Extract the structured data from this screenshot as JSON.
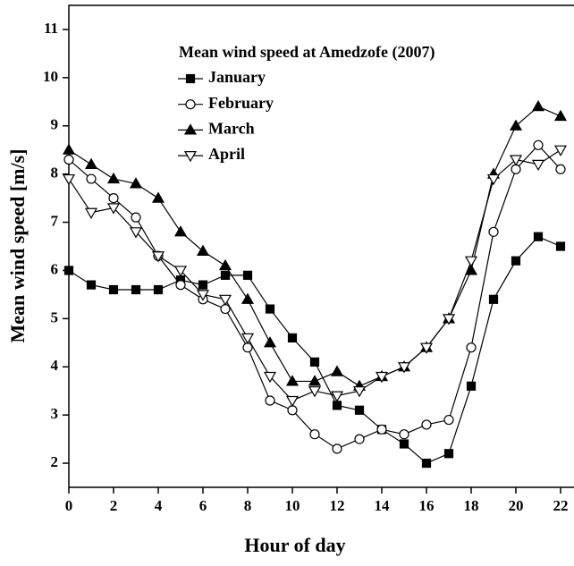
{
  "chart_data": {
    "type": "line",
    "legend_title": "Mean wind speed at Amedzofe (2007)",
    "xlabel": "Hour of day",
    "ylabel": "Mean wind speed [m/s]",
    "x": [
      0,
      1,
      2,
      3,
      4,
      5,
      6,
      7,
      8,
      9,
      10,
      11,
      12,
      13,
      14,
      15,
      16,
      17,
      18,
      19,
      20,
      21,
      22
    ],
    "series": [
      {
        "name": "January",
        "color": "#000000",
        "marker": "square",
        "filled": true,
        "values": [
          6.0,
          5.7,
          5.6,
          5.6,
          5.6,
          5.8,
          5.7,
          5.9,
          5.9,
          5.2,
          4.6,
          4.1,
          3.2,
          3.1,
          2.7,
          2.4,
          2.0,
          2.2,
          3.6,
          5.4,
          6.2,
          6.7,
          6.5
        ]
      },
      {
        "name": "February",
        "color": "#000000",
        "marker": "circle",
        "filled": false,
        "values": [
          8.3,
          7.9,
          7.5,
          7.1,
          6.3,
          5.7,
          5.4,
          5.2,
          4.4,
          3.3,
          3.1,
          2.6,
          2.3,
          2.5,
          2.7,
          2.6,
          2.8,
          2.9,
          4.4,
          6.8,
          8.1,
          8.6,
          8.1
        ]
      },
      {
        "name": "March",
        "color": "#000000",
        "marker": "triangle-up",
        "filled": true,
        "values": [
          8.5,
          8.2,
          7.9,
          7.8,
          7.5,
          6.8,
          6.4,
          6.1,
          5.4,
          4.5,
          3.7,
          3.7,
          3.9,
          3.6,
          3.8,
          4.0,
          4.4,
          5.0,
          6.0,
          8.0,
          9.0,
          9.4,
          9.2
        ]
      },
      {
        "name": "April",
        "color": "#000000",
        "marker": "triangle-down",
        "filled": false,
        "values": [
          7.9,
          7.2,
          7.3,
          6.8,
          6.3,
          6.0,
          5.5,
          5.4,
          4.6,
          3.8,
          3.3,
          3.5,
          3.4,
          3.5,
          3.8,
          4.0,
          4.4,
          5.0,
          6.2,
          7.9,
          8.3,
          8.2,
          8.5
        ]
      }
    ],
    "xlim": [
      0,
      22.6
    ],
    "xticks": [
      0,
      2,
      4,
      6,
      8,
      10,
      12,
      14,
      16,
      18,
      20,
      22
    ],
    "ylim": [
      1.5,
      11.5
    ],
    "yticks": [
      2,
      3,
      4,
      5,
      6,
      7,
      8,
      9,
      10,
      11
    ],
    "grid": false
  }
}
